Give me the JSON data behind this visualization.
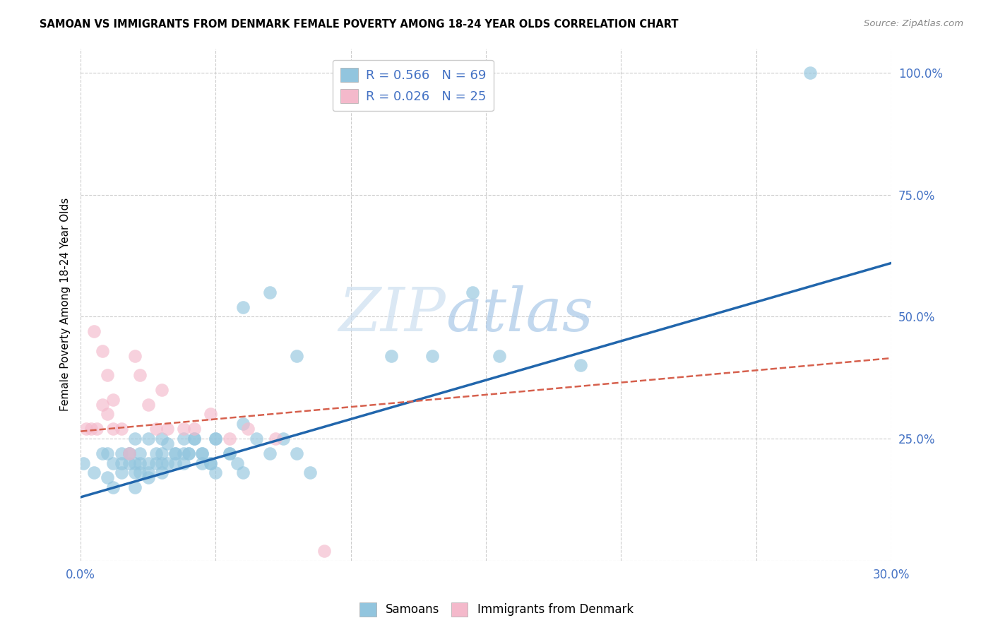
{
  "title": "SAMOAN VS IMMIGRANTS FROM DENMARK FEMALE POVERTY AMONG 18-24 YEAR OLDS CORRELATION CHART",
  "source": "Source: ZipAtlas.com",
  "ylabel": "Female Poverty Among 18-24 Year Olds",
  "xlim": [
    0.0,
    0.3
  ],
  "ylim": [
    0.0,
    1.05
  ],
  "xticks": [
    0.0,
    0.05,
    0.1,
    0.15,
    0.2,
    0.25,
    0.3
  ],
  "ytick_labels_right": [
    "",
    "25.0%",
    "50.0%",
    "75.0%",
    "100.0%"
  ],
  "ytick_positions_right": [
    0.0,
    0.25,
    0.5,
    0.75,
    1.0
  ],
  "blue_color": "#92c5de",
  "pink_color": "#f4b9cb",
  "blue_line_color": "#2166ac",
  "pink_line_color": "#d6604d",
  "legend_R1": "R = 0.566",
  "legend_N1": "N = 69",
  "legend_R2": "R = 0.026",
  "legend_N2": "N = 25",
  "samoans_x": [
    0.001,
    0.005,
    0.008,
    0.01,
    0.012,
    0.015,
    0.018,
    0.02,
    0.022,
    0.025,
    0.01,
    0.012,
    0.015,
    0.018,
    0.02,
    0.022,
    0.025,
    0.028,
    0.03,
    0.032,
    0.015,
    0.018,
    0.02,
    0.022,
    0.025,
    0.028,
    0.03,
    0.032,
    0.035,
    0.038,
    0.02,
    0.025,
    0.03,
    0.035,
    0.038,
    0.04,
    0.042,
    0.045,
    0.048,
    0.05,
    0.03,
    0.035,
    0.038,
    0.042,
    0.045,
    0.048,
    0.05,
    0.055,
    0.058,
    0.06,
    0.04,
    0.045,
    0.05,
    0.055,
    0.06,
    0.065,
    0.07,
    0.075,
    0.08,
    0.085,
    0.06,
    0.07,
    0.08,
    0.115,
    0.13,
    0.145,
    0.155,
    0.185,
    0.27
  ],
  "samoans_y": [
    0.2,
    0.18,
    0.22,
    0.17,
    0.15,
    0.2,
    0.22,
    0.18,
    0.2,
    0.25,
    0.22,
    0.2,
    0.18,
    0.22,
    0.2,
    0.18,
    0.17,
    0.2,
    0.22,
    0.24,
    0.22,
    0.2,
    0.25,
    0.22,
    0.2,
    0.22,
    0.25,
    0.2,
    0.22,
    0.25,
    0.15,
    0.18,
    0.2,
    0.22,
    0.2,
    0.22,
    0.25,
    0.22,
    0.2,
    0.18,
    0.18,
    0.2,
    0.22,
    0.25,
    0.22,
    0.2,
    0.25,
    0.22,
    0.2,
    0.18,
    0.22,
    0.2,
    0.25,
    0.22,
    0.28,
    0.25,
    0.22,
    0.25,
    0.22,
    0.18,
    0.52,
    0.55,
    0.42,
    0.42,
    0.42,
    0.55,
    0.42,
    0.4,
    1.0
  ],
  "denmark_x": [
    0.002,
    0.004,
    0.006,
    0.008,
    0.01,
    0.012,
    0.005,
    0.008,
    0.01,
    0.012,
    0.015,
    0.018,
    0.02,
    0.022,
    0.025,
    0.028,
    0.03,
    0.032,
    0.038,
    0.042,
    0.048,
    0.055,
    0.062,
    0.072,
    0.09
  ],
  "denmark_y": [
    0.27,
    0.27,
    0.27,
    0.32,
    0.3,
    0.27,
    0.47,
    0.43,
    0.38,
    0.33,
    0.27,
    0.22,
    0.42,
    0.38,
    0.32,
    0.27,
    0.35,
    0.27,
    0.27,
    0.27,
    0.3,
    0.25,
    0.27,
    0.25,
    0.02
  ],
  "blue_slope": 1.6,
  "blue_intercept": 0.13,
  "pink_slope": 0.5,
  "pink_intercept": 0.265
}
